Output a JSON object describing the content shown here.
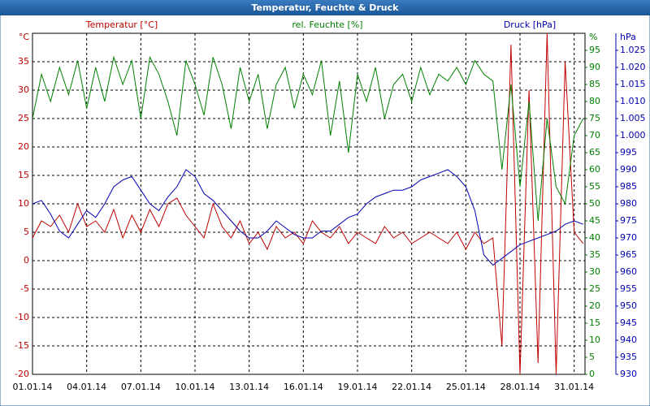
{
  "window_title": "Temperatur, Feuchte & Druck",
  "chart_data": {
    "type": "line",
    "y_unit": "°C",
    "y2_unit": "%",
    "y3_unit": "hPa",
    "x": [
      0,
      0.5,
      1,
      1.5,
      2,
      2.5,
      3,
      3.5,
      4,
      4.5,
      5,
      5.5,
      6,
      6.5,
      7,
      7.5,
      8,
      8.5,
      9,
      9.5,
      10,
      10.5,
      11,
      11.5,
      12,
      12.5,
      13,
      13.5,
      14,
      14.5,
      15,
      15.5,
      16,
      16.5,
      17,
      17.5,
      18,
      18.5,
      19,
      19.5,
      20,
      20.5,
      21,
      21.5,
      22,
      22.5,
      23,
      23.5,
      24,
      24.5,
      25,
      25.5,
      26,
      26.5,
      27,
      27.5,
      28,
      28.5,
      29,
      29.5,
      30,
      30.5
    ],
    "xlim": [
      0,
      30.6
    ],
    "xticks": [
      {
        "value": 0,
        "label": "01.01.14"
      },
      {
        "value": 3,
        "label": "04.01.14"
      },
      {
        "value": 6,
        "label": "07.01.14"
      },
      {
        "value": 9,
        "label": "10.01.14"
      },
      {
        "value": 12,
        "label": "13.01.14"
      },
      {
        "value": 15,
        "label": "16.01.14"
      },
      {
        "value": 18,
        "label": "19.01.14"
      },
      {
        "value": 21,
        "label": "22.01.14"
      },
      {
        "value": 24,
        "label": "25.01.14"
      },
      {
        "value": 27,
        "label": "28.01.14"
      },
      {
        "value": 30,
        "label": "31.01.14"
      }
    ],
    "ylim": [
      -20,
      40
    ],
    "yticks": [
      -20,
      -15,
      -10,
      -5,
      0,
      5,
      10,
      15,
      20,
      25,
      30,
      35
    ],
    "y2lim": [
      0,
      100
    ],
    "y2ticks": [
      0,
      5,
      10,
      15,
      20,
      25,
      30,
      35,
      40,
      45,
      50,
      55,
      60,
      65,
      70,
      75,
      80,
      85,
      90,
      95
    ],
    "y3lim": [
      930,
      1030
    ],
    "y3ticks": [
      930,
      935,
      940,
      945,
      950,
      955,
      960,
      965,
      970,
      975,
      980,
      985,
      990,
      995,
      {
        "value": 1000,
        "label": "1.000"
      },
      {
        "value": 1005,
        "label": "1.005"
      },
      {
        "value": 1010,
        "label": "1.010"
      },
      {
        "value": 1015,
        "label": "1.015"
      },
      {
        "value": 1020,
        "label": "1.020"
      },
      {
        "value": 1025,
        "label": "1.025"
      }
    ],
    "grid": true,
    "series": [
      {
        "name": "Temperatur [°C]",
        "color": "#c00000",
        "axis": "y",
        "values": [
          4,
          7,
          6,
          8,
          5,
          10,
          6,
          7,
          5,
          9,
          4,
          8,
          5,
          9,
          6,
          10,
          11,
          8,
          6,
          4,
          10,
          6,
          4,
          7,
          3,
          5,
          2,
          6,
          4,
          5,
          3,
          7,
          5,
          4,
          6,
          3,
          5,
          4,
          3,
          6,
          4,
          5,
          3,
          4,
          5,
          4,
          3,
          5,
          2,
          5,
          3,
          4,
          -15,
          38,
          -20,
          30,
          -18,
          40,
          -20,
          35,
          5,
          3
        ]
      },
      {
        "name": "rel. Feuchte [%]",
        "color": "#008000",
        "axis": "y2",
        "values": [
          75,
          88,
          80,
          90,
          82,
          92,
          78,
          90,
          80,
          93,
          85,
          92,
          75,
          93,
          88,
          80,
          70,
          92,
          85,
          76,
          93,
          85,
          72,
          90,
          80,
          88,
          72,
          85,
          90,
          78,
          88,
          82,
          92,
          70,
          86,
          65,
          88,
          80,
          90,
          75,
          85,
          88,
          80,
          90,
          82,
          88,
          86,
          90,
          85,
          92,
          88,
          86,
          60,
          85,
          55,
          80,
          45,
          75,
          55,
          50,
          70,
          75
        ]
      },
      {
        "name": "Druck [hPa]",
        "color": "#0000b0",
        "axis": "y3",
        "values": [
          980,
          981,
          977,
          972,
          970,
          974,
          978,
          976,
          980,
          985,
          987,
          988,
          984,
          980,
          978,
          982,
          985,
          990,
          988,
          983,
          981,
          978,
          975,
          972,
          970,
          970,
          972,
          975,
          973,
          971,
          970,
          970,
          972,
          972,
          974,
          976,
          977,
          980,
          982,
          983,
          984,
          984,
          985,
          987,
          988,
          989,
          990,
          988,
          985,
          978,
          965,
          962,
          964,
          966,
          968,
          969,
          970,
          971,
          972,
          974,
          975,
          974
        ]
      }
    ]
  }
}
